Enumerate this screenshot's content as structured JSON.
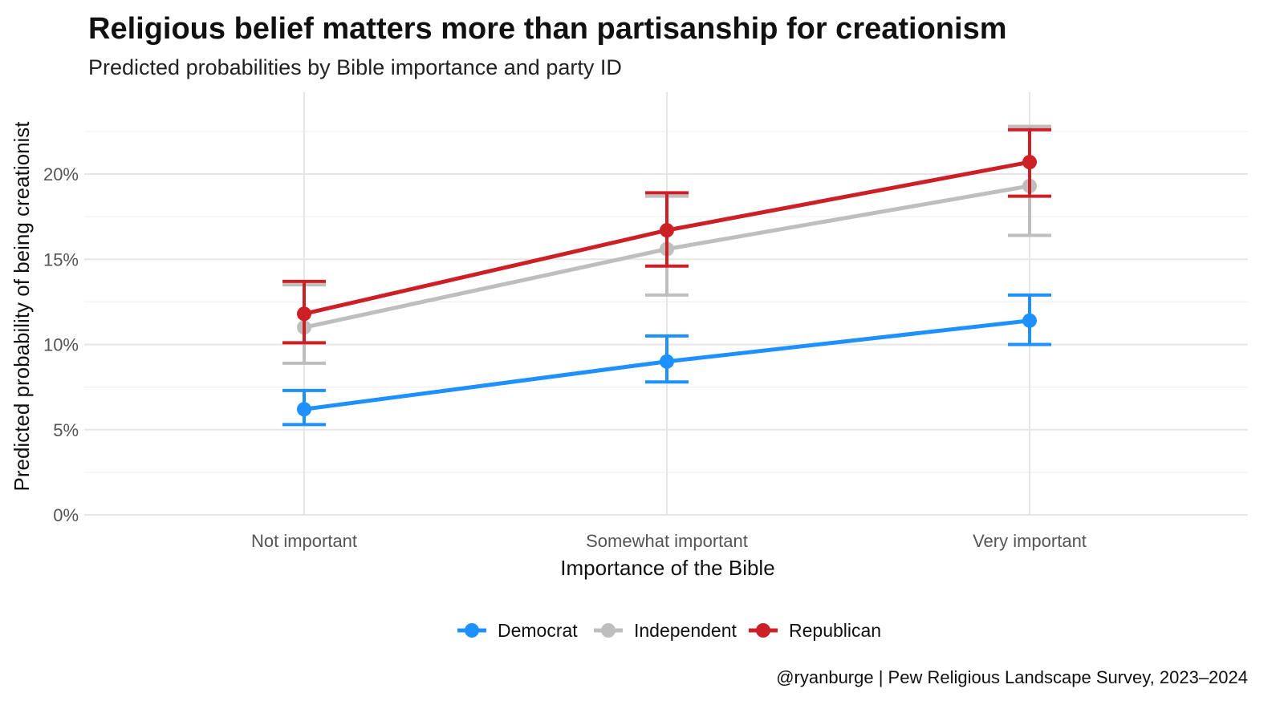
{
  "chart_data": {
    "type": "line",
    "title": "Religious belief matters more than partisanship for creationism",
    "subtitle": "Predicted probabilities by Bible importance and party ID",
    "xlabel": "Importance of the Bible",
    "ylabel": "Predicted probability of being creationist",
    "categories": [
      "Not important",
      "Somewhat important",
      "Very important"
    ],
    "ylim": [
      0,
      24
    ],
    "yticks": [
      0,
      5,
      10,
      15,
      20
    ],
    "ytick_labels": [
      "0%",
      "5%",
      "10%",
      "15%",
      "20%"
    ],
    "grid": true,
    "legend_position": "bottom",
    "series": [
      {
        "name": "Democrat",
        "color": "#1E90FF",
        "values": [
          6.2,
          9.0,
          11.4
        ],
        "lower": [
          5.3,
          7.8,
          10.0
        ],
        "upper": [
          7.3,
          10.5,
          12.9
        ]
      },
      {
        "name": "Independent",
        "color": "#BEBEBE",
        "values": [
          11.0,
          15.6,
          19.3
        ],
        "lower": [
          8.9,
          12.9,
          16.4
        ],
        "upper": [
          13.5,
          18.7,
          22.8
        ]
      },
      {
        "name": "Republican",
        "color": "#CD2026",
        "values": [
          11.8,
          16.7,
          20.7
        ],
        "lower": [
          10.1,
          14.6,
          18.7
        ],
        "upper": [
          13.7,
          18.9,
          22.6
        ]
      }
    ],
    "caption": "@ryanburge | Pew Religious Landscape Survey, 2023–2024"
  }
}
